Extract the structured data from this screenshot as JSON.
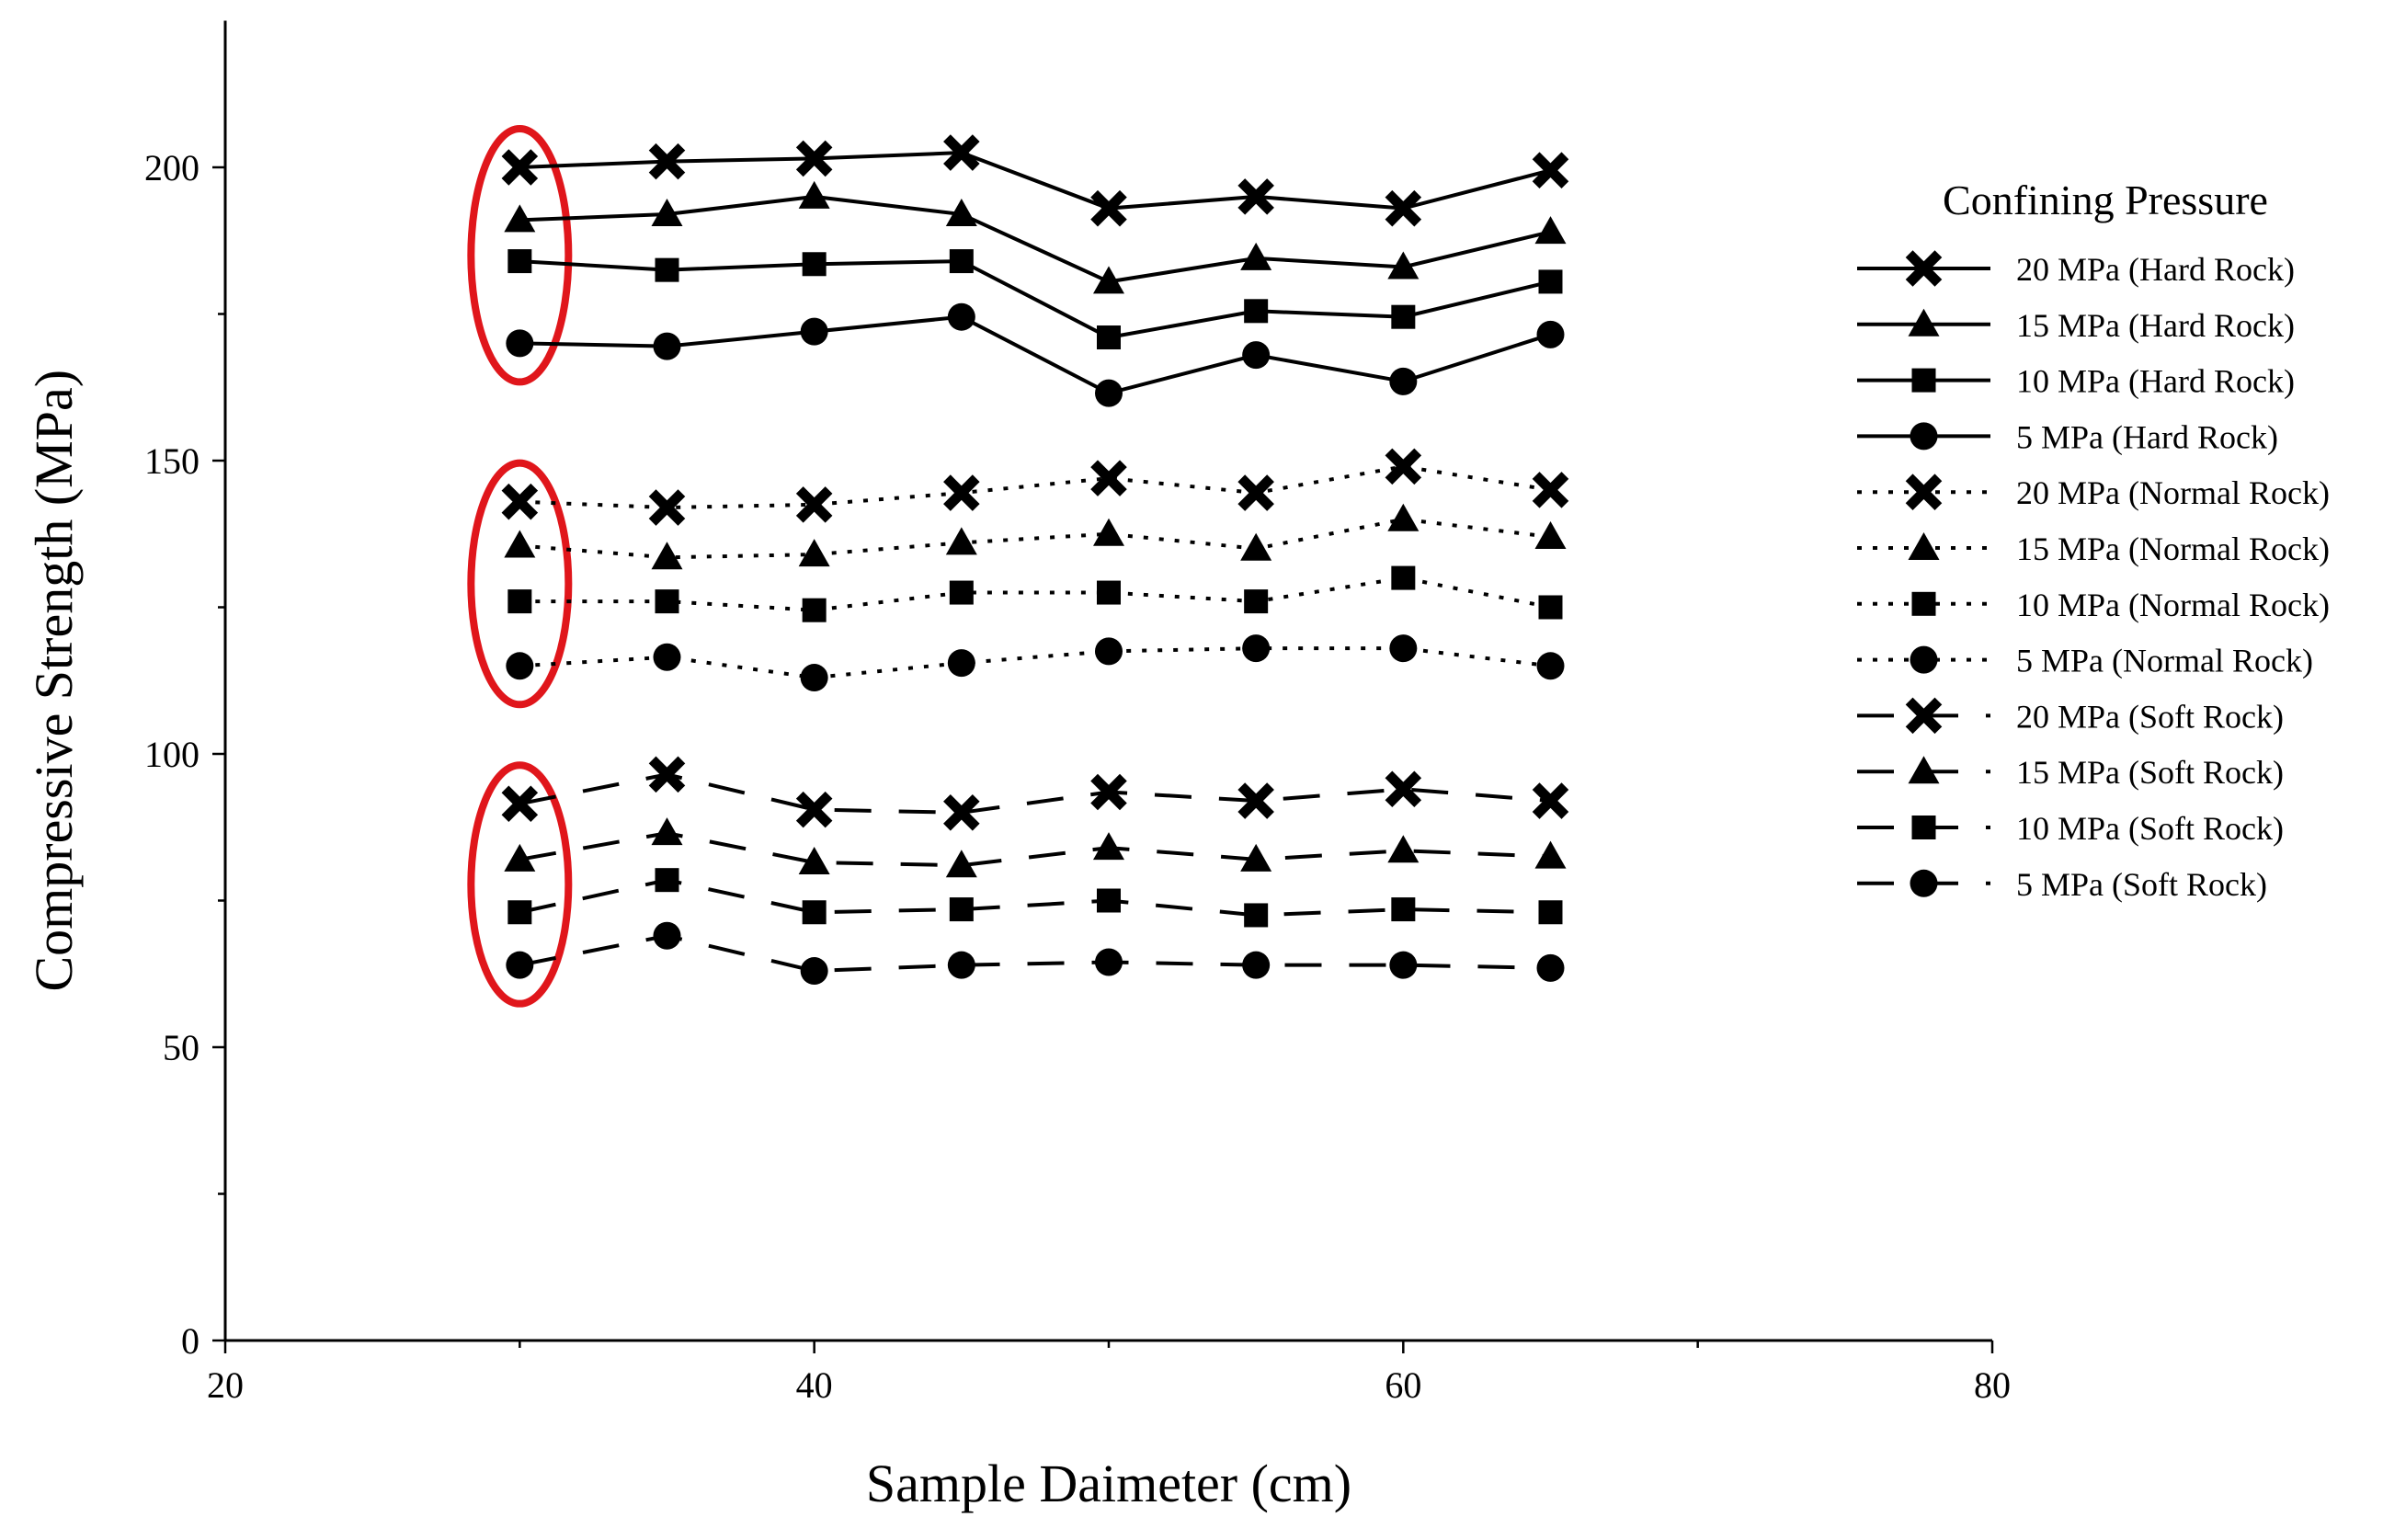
{
  "chart_data": {
    "type": "line",
    "title": "",
    "xlabel": "Sample Daimeter (cm)",
    "ylabel": "Compressive Strength (MPa)",
    "xlim": [
      20,
      80
    ],
    "ylim": [
      0,
      225
    ],
    "x_ticks": [
      20,
      40,
      60,
      80
    ],
    "x_minor_ticks": [
      30,
      50,
      70
    ],
    "y_ticks": [
      0,
      50,
      100,
      150,
      200
    ],
    "y_minor_ticks": [
      25,
      75,
      125,
      175
    ],
    "grid": false,
    "legend": {
      "title": "Confining Pressure",
      "position": "right"
    },
    "x": [
      30,
      35,
      40,
      45,
      50,
      55,
      60,
      65
    ],
    "series": [
      {
        "name": "20 MPa (Hard Rock)",
        "line_style": "solid",
        "marker": "x",
        "values": [
          200,
          201,
          201.5,
          202.5,
          193,
          195,
          193,
          199.5
        ]
      },
      {
        "name": "15 MPa (Hard Rock)",
        "line_style": "solid",
        "marker": "triangle",
        "values": [
          191,
          192,
          195,
          192,
          180.5,
          184.5,
          183,
          189
        ]
      },
      {
        "name": "10 MPa (Hard Rock)",
        "line_style": "solid",
        "marker": "square",
        "values": [
          184,
          182.5,
          183.5,
          184,
          171,
          175.5,
          174.5,
          180.5
        ]
      },
      {
        "name": "5 MPa (Hard Rock)",
        "line_style": "solid",
        "marker": "circle",
        "values": [
          170,
          169.5,
          172,
          174.5,
          161.5,
          168,
          163.5,
          171.5
        ]
      },
      {
        "name": "20 MPa (Normal Rock)",
        "line_style": "dotted",
        "marker": "x",
        "values": [
          143,
          142,
          142.5,
          144.5,
          147,
          144.5,
          149,
          145
        ]
      },
      {
        "name": "15 MPa (Normal Rock)",
        "line_style": "dotted",
        "marker": "triangle",
        "values": [
          135.5,
          133.5,
          134,
          136,
          137.5,
          135,
          140,
          137
        ]
      },
      {
        "name": "10 MPa (Normal Rock)",
        "line_style": "dotted",
        "marker": "square",
        "values": [
          126,
          126,
          124.5,
          127.5,
          127.5,
          126,
          130,
          125
        ]
      },
      {
        "name": "5 MPa (Normal Rock)",
        "line_style": "dotted",
        "marker": "circle",
        "values": [
          115,
          116.5,
          113,
          115.5,
          117.5,
          118,
          118,
          115
        ]
      },
      {
        "name": "20 MPa (Soft Rock)",
        "line_style": "dashed",
        "marker": "x",
        "values": [
          91.5,
          96.5,
          90.5,
          90,
          93.5,
          92,
          94,
          92
        ]
      },
      {
        "name": "15 MPa (Soft Rock)",
        "line_style": "dashed",
        "marker": "triangle",
        "values": [
          82,
          86.5,
          81.5,
          81,
          84,
          82,
          83.5,
          82.5
        ]
      },
      {
        "name": "10 MPa (Soft Rock)",
        "line_style": "dashed",
        "marker": "square",
        "values": [
          73,
          78.5,
          73,
          73.5,
          75,
          72.5,
          73.5,
          73
        ]
      },
      {
        "name": "5 MPa (Soft Rock)",
        "line_style": "dashed",
        "marker": "circle",
        "values": [
          64,
          69,
          63,
          64,
          64.5,
          64,
          64,
          63.5
        ]
      }
    ],
    "annotations": [
      {
        "type": "ellipse",
        "color": "#e0161b",
        "at_x": 30,
        "y_range": [
          170,
          200
        ],
        "group": "Hard Rock"
      },
      {
        "type": "ellipse",
        "color": "#e0161b",
        "at_x": 30,
        "y_range": [
          115,
          143
        ],
        "group": "Normal Rock"
      },
      {
        "type": "ellipse",
        "color": "#e0161b",
        "at_x": 30,
        "y_range": [
          64,
          91.5
        ],
        "group": "Soft Rock"
      }
    ]
  }
}
